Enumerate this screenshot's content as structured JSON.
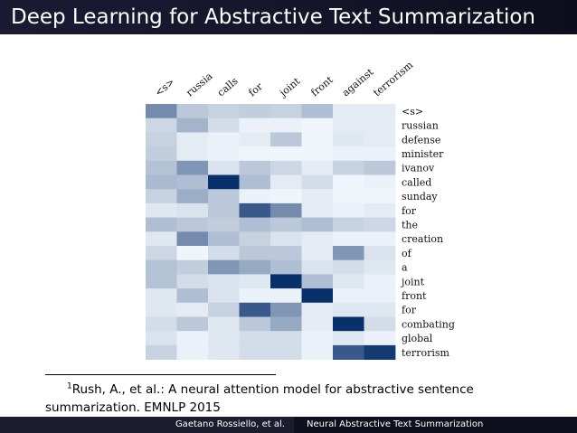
{
  "slide": {
    "title": "Deep Learning for Abstractive Text Summarization",
    "footnote": {
      "marker": "1",
      "line1": "Rush, A., et al.: A neural attention model for abstractive sentence",
      "line2": "summarization. EMNLP 2015"
    },
    "footer": {
      "authors": "Gaetano Rossiello, et al.",
      "talk_title": "Neural Abstractive Text Summarization"
    }
  },
  "colors": {
    "header_bg": "#1a1a33",
    "heat_low": "#f7fbff",
    "heat_high": "#08306b"
  },
  "chart_data": {
    "type": "heatmap",
    "title": "",
    "x_labels": [
      "<s>",
      "russia",
      "calls",
      "for",
      "joint",
      "front",
      "against",
      "terrorism"
    ],
    "y_labels": [
      "<s>",
      "russian",
      "defense",
      "minister",
      "ivanov",
      "called",
      "sunday",
      "for",
      "the",
      "creation",
      "of",
      "a",
      "joint",
      "front",
      "for",
      "combating",
      "global",
      "terrorism"
    ],
    "value_range": [
      0,
      1
    ],
    "values": [
      [
        0.55,
        0.25,
        0.2,
        0.22,
        0.2,
        0.3,
        0.08,
        0.08
      ],
      [
        0.18,
        0.35,
        0.15,
        0.05,
        0.05,
        0.03,
        0.08,
        0.08
      ],
      [
        0.2,
        0.08,
        0.05,
        0.08,
        0.25,
        0.03,
        0.1,
        0.08
      ],
      [
        0.22,
        0.08,
        0.05,
        0.03,
        0.03,
        0.03,
        0.05,
        0.05
      ],
      [
        0.28,
        0.5,
        0.12,
        0.25,
        0.18,
        0.08,
        0.2,
        0.25
      ],
      [
        0.32,
        0.3,
        1.0,
        0.3,
        0.08,
        0.15,
        0.03,
        0.05
      ],
      [
        0.2,
        0.38,
        0.25,
        0.05,
        0.03,
        0.08,
        0.03,
        0.03
      ],
      [
        0.1,
        0.12,
        0.25,
        0.8,
        0.55,
        0.08,
        0.05,
        0.08
      ],
      [
        0.3,
        0.25,
        0.22,
        0.3,
        0.25,
        0.3,
        0.2,
        0.18
      ],
      [
        0.1,
        0.55,
        0.3,
        0.2,
        0.12,
        0.08,
        0.05,
        0.05
      ],
      [
        0.18,
        0.03,
        0.15,
        0.25,
        0.25,
        0.08,
        0.5,
        0.12
      ],
      [
        0.28,
        0.22,
        0.5,
        0.4,
        0.3,
        0.12,
        0.15,
        0.1
      ],
      [
        0.28,
        0.15,
        0.12,
        0.1,
        1.0,
        0.3,
        0.1,
        0.05
      ],
      [
        0.1,
        0.3,
        0.12,
        0.05,
        0.05,
        1.0,
        0.05,
        0.05
      ],
      [
        0.1,
        0.08,
        0.2,
        0.8,
        0.5,
        0.08,
        0.1,
        0.1
      ],
      [
        0.15,
        0.25,
        0.1,
        0.25,
        0.4,
        0.08,
        1.0,
        0.15
      ],
      [
        0.12,
        0.05,
        0.1,
        0.15,
        0.15,
        0.05,
        0.1,
        0.05
      ],
      [
        0.2,
        0.05,
        0.1,
        0.15,
        0.15,
        0.05,
        0.8,
        0.95
      ]
    ]
  }
}
